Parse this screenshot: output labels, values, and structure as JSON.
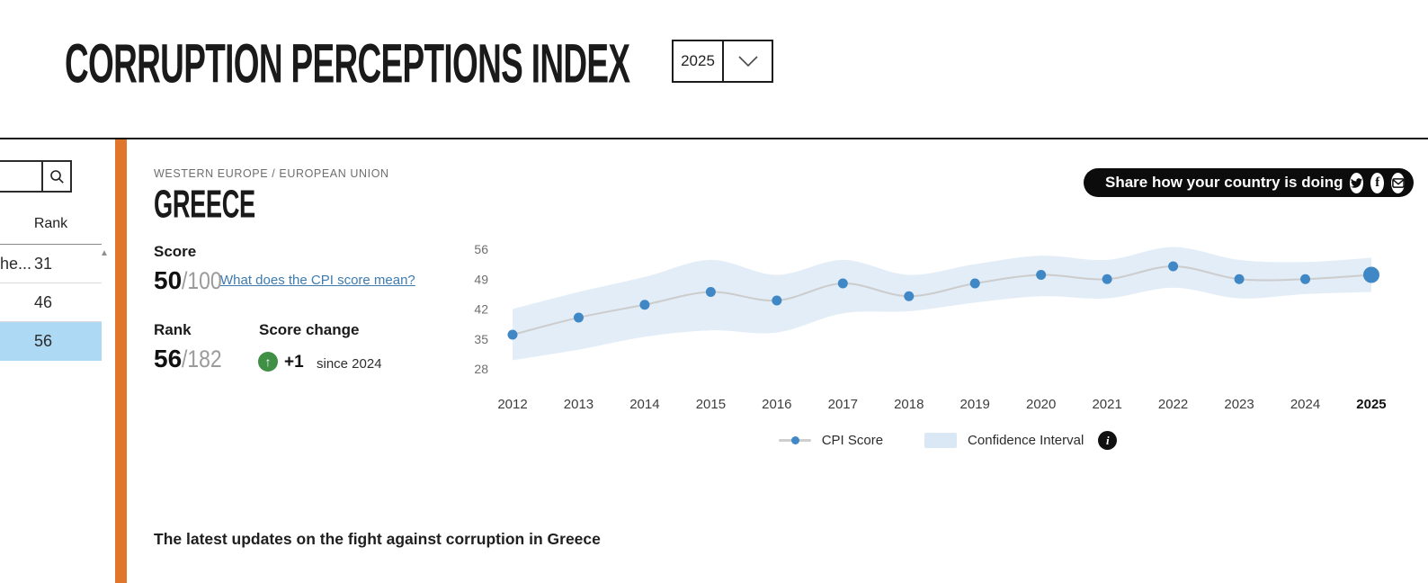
{
  "header": {
    "title": "CORRUPTION PERCEPTIONS INDEX",
    "year_selector": {
      "value": "2025"
    }
  },
  "sidebar": {
    "search": {
      "placeholder": ""
    },
    "rank_header": "Rank",
    "rows": [
      {
        "country": "he...",
        "rank": "31",
        "selected": false
      },
      {
        "country": "",
        "rank": "46",
        "selected": false
      },
      {
        "country": "",
        "rank": "56",
        "selected": true
      }
    ]
  },
  "country": {
    "breadcrumb": "WESTERN EUROPE / EUROPEAN UNION",
    "name": "GREECE",
    "share": {
      "label": "Share how your country is doing",
      "icons": [
        "twitter-icon",
        "facebook-icon",
        "email-icon"
      ]
    },
    "score": {
      "label": "Score",
      "value": "50",
      "max": "/100",
      "link": "What does the CPI score mean?"
    },
    "rank": {
      "label": "Rank",
      "value": "56",
      "total": "/182"
    },
    "change": {
      "label": "Score change",
      "value": "+1",
      "since": "since 2024",
      "direction": "up"
    }
  },
  "chart_data": {
    "type": "line",
    "title": "",
    "x": [
      2012,
      2013,
      2014,
      2015,
      2016,
      2017,
      2018,
      2019,
      2020,
      2021,
      2022,
      2023,
      2024,
      2025
    ],
    "series": [
      {
        "name": "CPI Score",
        "values": [
          36,
          40,
          43,
          46,
          44,
          48,
          45,
          48,
          50,
          49,
          52,
          49,
          49,
          50
        ]
      }
    ],
    "ci_upper": [
      42,
      46,
      49.5,
      53.5,
      50,
      53.5,
      50,
      52.5,
      54.5,
      53.5,
      56.5,
      53.5,
      53,
      54
    ],
    "ci_lower": [
      30,
      32.5,
      35.5,
      37,
      36.5,
      41,
      41.5,
      43.5,
      45,
      44.5,
      47,
      44.5,
      45.5,
      46
    ],
    "yticks": [
      56,
      49,
      42,
      35,
      28
    ],
    "ylim": [
      26,
      58
    ],
    "grid": false,
    "legend_position": "bottom",
    "legend": [
      "CPI Score",
      "Confidence Interval"
    ],
    "highlight_year": 2025,
    "colors": {
      "dot": "#3f88c5",
      "line": "#cccccc",
      "band": "#e3edf7",
      "accent": "#e0762c",
      "selected_row": "#aed9f5",
      "link": "#3d7bb0",
      "change_up": "#3f8f44"
    }
  },
  "updates": {
    "heading": "The latest updates on the fight against corruption in Greece"
  }
}
